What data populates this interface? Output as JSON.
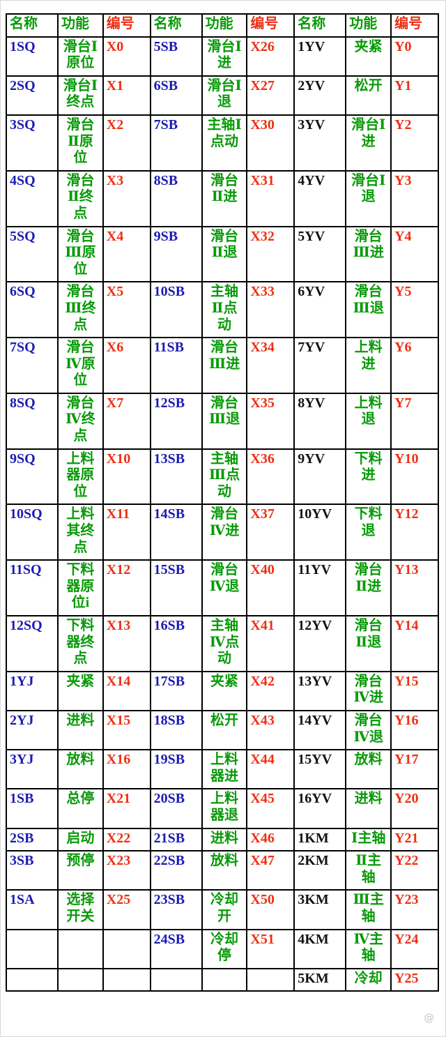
{
  "colors": {
    "header-green": "#089a08",
    "header-red": "#ee2f12",
    "name-blue": "#1b1bb3",
    "name-black": "#141414",
    "func-green": "#089a08",
    "num-red": "#ee2f12",
    "border": "#000000"
  },
  "header": {
    "name": "名称",
    "func": "功能",
    "num": "编号"
  },
  "watermark": {
    "text": "@"
  },
  "rows": [
    [
      [
        "1SQ",
        "滑台Ⅰ原位",
        "X0"
      ],
      [
        "5SB",
        "滑台Ⅰ进",
        "X26"
      ],
      [
        "1YV",
        "夹紧",
        "Y0"
      ]
    ],
    [
      [
        "2SQ",
        "滑台Ⅰ终点",
        "X1"
      ],
      [
        "6SB",
        "滑台Ⅰ退",
        "X27"
      ],
      [
        "2YV",
        "松开",
        "Y1"
      ]
    ],
    [
      [
        "3SQ",
        "滑台Ⅱ原位",
        "X2"
      ],
      [
        "7SB",
        "主轴Ⅰ点动",
        "X30"
      ],
      [
        "3YV",
        "滑台Ⅰ进",
        "Y2"
      ]
    ],
    [
      [
        "4SQ",
        "滑台Ⅱ终点",
        "X3"
      ],
      [
        "8SB",
        "滑台Ⅱ进",
        "X31"
      ],
      [
        "4YV",
        "滑台Ⅰ退",
        "Y3"
      ]
    ],
    [
      [
        "5SQ",
        "滑台Ⅲ原位",
        "X4"
      ],
      [
        "9SB",
        "滑台Ⅱ退",
        "X32"
      ],
      [
        "5YV",
        "滑台Ⅲ进",
        "Y4"
      ]
    ],
    [
      [
        "6SQ",
        "滑台Ⅲ终点",
        "X5"
      ],
      [
        "10SB",
        "主轴Ⅱ点动",
        "X33"
      ],
      [
        "6YV",
        "滑台Ⅲ退",
        "Y5"
      ]
    ],
    [
      [
        "7SQ",
        "滑台Ⅳ原位",
        "X6"
      ],
      [
        "11SB",
        "滑台Ⅲ进",
        "X34"
      ],
      [
        "7YV",
        "上料进",
        "Y6"
      ]
    ],
    [
      [
        "8SQ",
        "滑台Ⅳ终点",
        "X7"
      ],
      [
        "12SB",
        "滑台Ⅲ退",
        "X35"
      ],
      [
        "8YV",
        "上料退",
        "Y7"
      ]
    ],
    [
      [
        "9SQ",
        "上料器原位",
        "X10"
      ],
      [
        "13SB",
        "主轴Ⅲ点动",
        "X36"
      ],
      [
        "9YV",
        "下料进",
        "Y10"
      ]
    ],
    [
      [
        "10SQ",
        "上料其终点",
        "X11"
      ],
      [
        "14SB",
        "滑台Ⅳ进",
        "X37"
      ],
      [
        "10YV",
        "下料退",
        "Y12"
      ]
    ],
    [
      [
        "11SQ",
        "下料器原位i",
        "X12"
      ],
      [
        "15SB",
        "滑台Ⅳ退",
        "X40"
      ],
      [
        "11YV",
        "滑台Ⅱ进",
        "Y13"
      ]
    ],
    [
      [
        "12SQ",
        "下料器终点",
        "X13"
      ],
      [
        "16SB",
        "主轴Ⅳ点动",
        "X41"
      ],
      [
        "12YV",
        "滑台Ⅱ退",
        "Y14"
      ]
    ],
    [
      [
        "1YJ",
        "夹紧",
        "X14"
      ],
      [
        "17SB",
        "夹紧",
        "X42"
      ],
      [
        "13YV",
        "滑台Ⅳ进",
        "Y15"
      ]
    ],
    [
      [
        "2YJ",
        "进料",
        "X15"
      ],
      [
        "18SB",
        "松开",
        "X43"
      ],
      [
        "14YV",
        "滑台Ⅳ退",
        "Y16"
      ]
    ],
    [
      [
        "3YJ",
        "放料",
        "X16"
      ],
      [
        "19SB",
        "上料器进",
        "X44"
      ],
      [
        "15YV",
        "放料",
        "Y17"
      ]
    ],
    [
      [
        "1SB",
        "总停",
        "X21"
      ],
      [
        "20SB",
        "上料器退",
        "X45"
      ],
      [
        "16YV",
        "进料",
        "Y20"
      ]
    ],
    [
      [
        "2SB",
        "启动",
        "X22"
      ],
      [
        "21SB",
        "进料",
        "X46"
      ],
      [
        "1KM",
        "Ⅰ主轴",
        "Y21"
      ]
    ],
    [
      [
        "3SB",
        "预停",
        "X23"
      ],
      [
        "22SB",
        "放料",
        "X47"
      ],
      [
        "2KM",
        "Ⅱ主轴",
        "Y22"
      ]
    ],
    [
      [
        "1SA",
        "选择开关",
        "X25"
      ],
      [
        "23SB",
        "冷却开",
        "X50"
      ],
      [
        "3KM",
        "Ⅲ主轴",
        "Y23"
      ]
    ],
    [
      [
        "",
        "",
        ""
      ],
      [
        "24SB",
        "冷却停",
        "X51"
      ],
      [
        "4KM",
        "Ⅳ主轴",
        "Y24"
      ]
    ],
    [
      [
        "",
        "",
        ""
      ],
      [
        "",
        "",
        ""
      ],
      [
        "5KM",
        "冷却",
        "Y25"
      ]
    ]
  ]
}
